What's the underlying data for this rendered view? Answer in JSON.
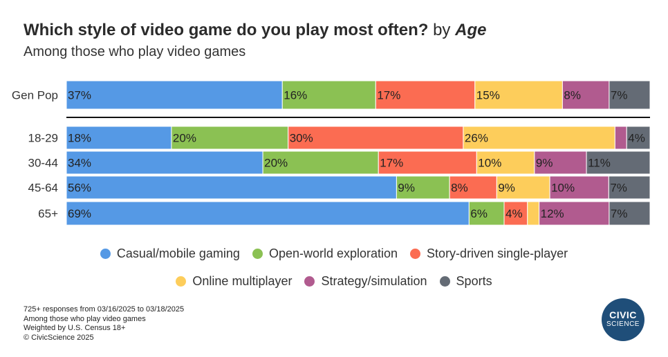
{
  "header": {
    "title": "Which style of video game do you play most often?",
    "title_by": "by",
    "title_segment": "Age",
    "subtitle": "Among those who play video games"
  },
  "chart_data": {
    "type": "bar",
    "orientation": "horizontal",
    "stacked": true,
    "normalized": true,
    "categories": [
      "Gen Pop",
      "18-29",
      "30-44",
      "45-64",
      "65+"
    ],
    "series": [
      {
        "name": "Casual/mobile gaming",
        "color": "#5599e5",
        "values": [
          37,
          18,
          34,
          56,
          69
        ],
        "labels": [
          "37%",
          "18%",
          "34%",
          "56%",
          "69%"
        ]
      },
      {
        "name": "Open-world exploration",
        "color": "#8bc153",
        "values": [
          16,
          20,
          20,
          9,
          6
        ],
        "labels": [
          "16%",
          "20%",
          "20%",
          "9%",
          "6%"
        ]
      },
      {
        "name": "Story-driven single-player",
        "color": "#fb6c52",
        "values": [
          17,
          30,
          17,
          8,
          4
        ],
        "labels": [
          "17%",
          "30%",
          "17%",
          "8%",
          "4%"
        ]
      },
      {
        "name": "Online multiplayer",
        "color": "#fdcd5b",
        "values": [
          15,
          26,
          10,
          9,
          2
        ],
        "labels": [
          "15%",
          "26%",
          "10%",
          "9%",
          ""
        ]
      },
      {
        "name": "Strategy/simulation",
        "color": "#b15b8f",
        "values": [
          8,
          2,
          9,
          10,
          12
        ],
        "labels": [
          "8%",
          "",
          "9%",
          "10%",
          "12%"
        ]
      },
      {
        "name": "Sports",
        "color": "#646b75",
        "values": [
          7,
          4,
          11,
          7,
          7
        ],
        "labels": [
          "7%",
          "4%",
          "11%",
          "7%",
          "7%"
        ]
      }
    ],
    "legend_position": "bottom",
    "grid": false
  },
  "legend": {
    "row1": [
      {
        "name": "Casual/mobile gaming",
        "color": "#5599e5"
      },
      {
        "name": "Open-world exploration",
        "color": "#8bc153"
      },
      {
        "name": "Story-driven single-player",
        "color": "#fb6c52"
      }
    ],
    "row2": [
      {
        "name": "Online multiplayer",
        "color": "#fdcd5b"
      },
      {
        "name": "Strategy/simulation",
        "color": "#b15b8f"
      },
      {
        "name": "Sports",
        "color": "#646b75"
      }
    ]
  },
  "footnotes": {
    "responses": "725+ responses from 03/16/2025 to 03/18/2025",
    "population": "Among those who play video games",
    "weighting": "Weighted by U.S. Census 18+",
    "copyright": "© CivicScience 2025"
  },
  "logo": {
    "line1": "CIVIC",
    "line2": "SCIENCE",
    "color": "#1f4e79"
  }
}
